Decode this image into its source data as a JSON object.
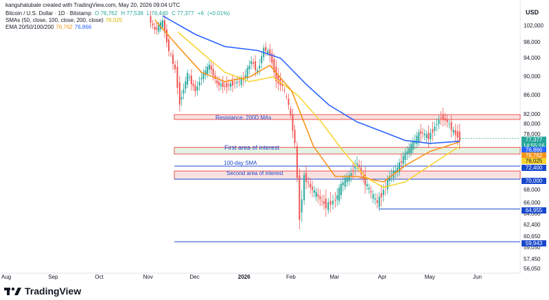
{
  "header": {
    "credit": "kanguhalubale created with TradingView.com, May 20, 2026 09:04 UTC",
    "symbol": "Bitcoin / U.S. Dollar · 1D · Bitstamp",
    "ohlc": [
      "O 76,762",
      "H 77,538",
      "L 76,440",
      "C 77,377",
      "+6",
      "(+0.01%)"
    ],
    "sma_label": "SMAs (50, close, 100, close, 200, close)",
    "sma_value": "76,025",
    "ema_label": "EMA 20/50/100/200",
    "ema_values": [
      "76,762",
      "76,866"
    ]
  },
  "axis": {
    "currency": "USD"
  },
  "colors": {
    "up": "#26a69a",
    "down": "#ef5350",
    "sma": "#f7d433",
    "ema_orange": "#f7931a",
    "ema_blue": "#2962ff",
    "support_line": "#1848cc",
    "resistance_fill": "#f8d7d7",
    "interest_fill": "#d9eed9"
  },
  "price_tags": [
    {
      "text": "77,377",
      "color": "#26a69a"
    },
    {
      "text": "14:55:16",
      "color": "#26a69a"
    },
    {
      "text": "76,866",
      "color": "#2962ff"
    },
    {
      "text": "76,762",
      "color": "#f7931a"
    },
    {
      "text": "76,025",
      "color": "#f7d433"
    },
    {
      "text": "72,400",
      "color": "#1848cc"
    },
    {
      "text": "70,000",
      "color": "#1848cc"
    },
    {
      "text": "64,955",
      "color": "#1848cc"
    },
    {
      "text": "59,943",
      "color": "#1848cc"
    }
  ],
  "annotations": {
    "resistance": "Resistance: 200D MAs",
    "first_area": "First area of interest",
    "sma100": "100-day SMA",
    "second_area": "Second area of interest"
  },
  "footer": {
    "brand": "TradingView"
  },
  "chart_data": {
    "type": "line",
    "title": "Bitcoin / U.S. Dollar · 1D · Bitstamp",
    "y_ticks": [
      102000,
      98000,
      94000,
      90000,
      86000,
      82000,
      80000,
      78000,
      74000,
      68000,
      66000,
      64000,
      62400,
      60650,
      59050,
      57450,
      56050
    ],
    "y_tick_labels": [
      "102,000",
      "98,000",
      "94,000",
      "90,000",
      "86,000",
      "82,000",
      "80,000",
      "78,000",
      "74,000",
      "68,000",
      "66,000",
      "64,000",
      "62,400",
      "60,650",
      "59,050",
      "57,450",
      "56,050"
    ],
    "x_tick_labels": [
      "Aug",
      "Sep",
      "Oct",
      "Nov",
      "Dec",
      "2026",
      "Feb",
      "Mar",
      "Apr",
      "May",
      "Jun"
    ],
    "price_close": [
      [
        "2025-11-01",
        104000
      ],
      [
        "2025-11-05",
        101000
      ],
      [
        "2025-11-10",
        103000
      ],
      [
        "2025-11-14",
        96000
      ],
      [
        "2025-11-18",
        91500
      ],
      [
        "2025-11-21",
        84500
      ],
      [
        "2025-11-26",
        90500
      ],
      [
        "2025-12-01",
        87000
      ],
      [
        "2025-12-05",
        90000
      ],
      [
        "2025-12-10",
        92500
      ],
      [
        "2025-12-15",
        88500
      ],
      [
        "2025-12-20",
        88000
      ],
      [
        "2025-12-25",
        88500
      ],
      [
        "2026-01-01",
        89500
      ],
      [
        "2026-01-06",
        93500
      ],
      [
        "2026-01-10",
        91000
      ],
      [
        "2026-01-14",
        96500
      ],
      [
        "2026-01-18",
        95000
      ],
      [
        "2026-01-22",
        89500
      ],
      [
        "2026-01-26",
        88000
      ],
      [
        "2026-01-30",
        84000
      ],
      [
        "2026-02-03",
        76500
      ],
      [
        "2026-02-06",
        63500
      ],
      [
        "2026-02-09",
        70500
      ],
      [
        "2026-02-13",
        68500
      ],
      [
        "2026-02-18",
        67000
      ],
      [
        "2026-02-23",
        65500
      ],
      [
        "2026-03-01",
        66500
      ],
      [
        "2026-03-06",
        69500
      ],
      [
        "2026-03-10",
        70500
      ],
      [
        "2026-03-15",
        73000
      ],
      [
        "2026-03-19",
        70000
      ],
      [
        "2026-03-24",
        67500
      ],
      [
        "2026-03-28",
        66000
      ],
      [
        "2026-04-01",
        68000
      ],
      [
        "2026-04-05",
        70500
      ],
      [
        "2026-04-10",
        72000
      ],
      [
        "2026-04-15",
        74500
      ],
      [
        "2026-04-20",
        76500
      ],
      [
        "2026-04-25",
        78500
      ],
      [
        "2026-04-30",
        77500
      ],
      [
        "2026-05-04",
        79500
      ],
      [
        "2026-05-08",
        81500
      ],
      [
        "2026-05-12",
        80500
      ],
      [
        "2026-05-16",
        78500
      ],
      [
        "2026-05-20",
        77377
      ]
    ],
    "series": [
      {
        "name": "SMAs (50, close, 100, close, 200, close)",
        "points": [
          [
            "2025-11-20",
            100500
          ],
          [
            "2025-12-05",
            95500
          ],
          [
            "2025-12-20",
            91000
          ],
          [
            "2026-01-05",
            89000
          ],
          [
            "2026-01-20",
            90000
          ],
          [
            "2026-02-05",
            86000
          ],
          [
            "2026-02-20",
            80500
          ],
          [
            "2026-03-05",
            75500
          ],
          [
            "2026-03-20",
            70500
          ],
          [
            "2026-04-01",
            68500
          ],
          [
            "2026-04-15",
            69500
          ],
          [
            "2026-05-01",
            72500
          ],
          [
            "2026-05-20",
            76025
          ]
        ]
      },
      {
        "name": "EMA 20/50/100/200 (20)",
        "points": [
          [
            "2025-11-05",
            103500
          ],
          [
            "2025-11-20",
            97000
          ],
          [
            "2025-12-05",
            91000
          ],
          [
            "2025-12-20",
            89000
          ],
          [
            "2026-01-05",
            90000
          ],
          [
            "2026-01-18",
            92500
          ],
          [
            "2026-02-01",
            87000
          ],
          [
            "2026-02-15",
            76000
          ],
          [
            "2026-03-01",
            70500
          ],
          [
            "2026-03-15",
            70500
          ],
          [
            "2026-04-01",
            69500
          ],
          [
            "2026-04-15",
            72500
          ],
          [
            "2026-05-01",
            75000
          ],
          [
            "2026-05-20",
            76762
          ]
        ]
      },
      {
        "name": "EMA 20/50/100/200 (200)",
        "points": [
          [
            "2025-11-10",
            104500
          ],
          [
            "2025-12-01",
            100000
          ],
          [
            "2025-12-20",
            97000
          ],
          [
            "2026-01-10",
            96000
          ],
          [
            "2026-01-25",
            94000
          ],
          [
            "2026-02-10",
            88500
          ],
          [
            "2026-02-25",
            84000
          ],
          [
            "2026-03-15",
            80500
          ],
          [
            "2026-04-01",
            78500
          ],
          [
            "2026-04-15",
            77000
          ],
          [
            "2026-05-01",
            76500
          ],
          [
            "2026-05-20",
            76866
          ]
        ]
      }
    ],
    "zones": [
      {
        "label": "Resistance: 200D MAs",
        "from": 81000,
        "to": 82000
      },
      {
        "label": "First area of interest",
        "from": 74500,
        "to": 75800
      },
      {
        "label": "Second area of interest",
        "from": 70000,
        "to": 71500
      }
    ],
    "levels": [
      72400,
      70000,
      64955,
      59943
    ],
    "last_price": 77377
  }
}
